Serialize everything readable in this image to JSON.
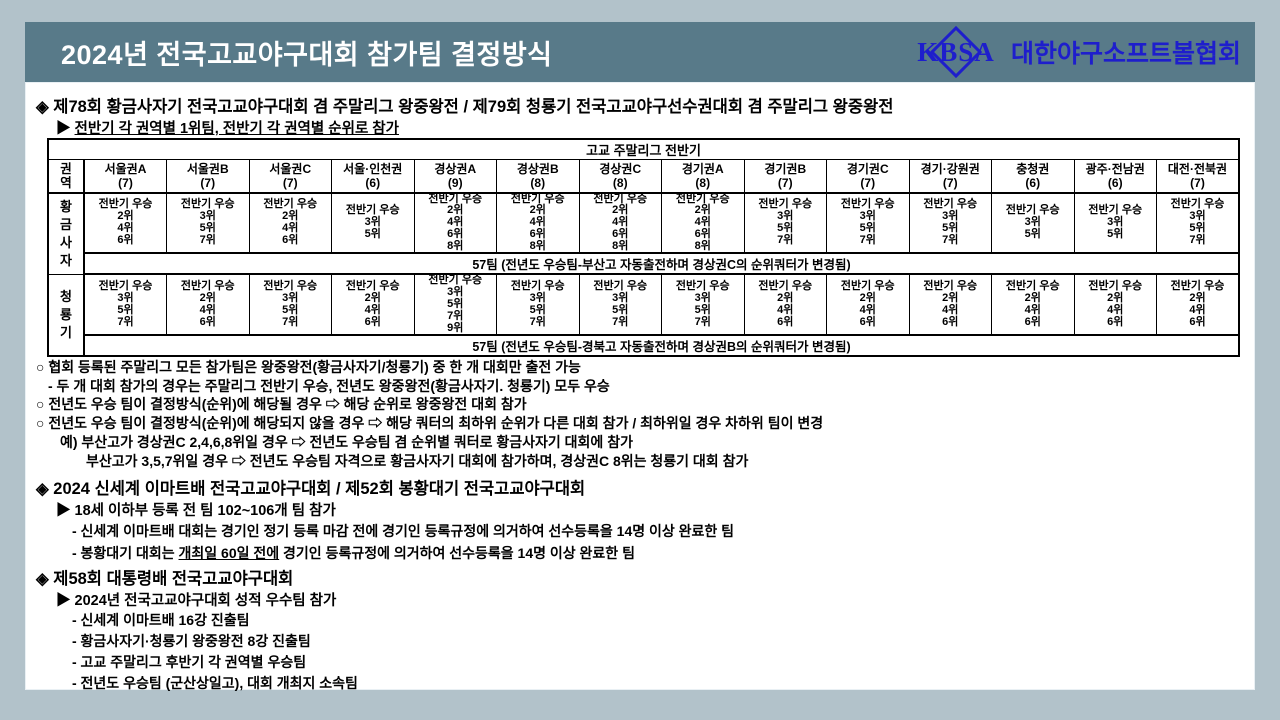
{
  "colors": {
    "page_bg": "#b2c2ca",
    "title_bar_bg": "#587a89",
    "title_text": "#ffffff",
    "logo_blue": "#1e1ecc",
    "body_text": "#000000",
    "panel_bg": "#ffffff"
  },
  "header": {
    "title": "2024년 전국고교야구대회 참가팀 결정방식",
    "logo_acronym": "KBSA",
    "logo_org": "대한야구소프트볼협회"
  },
  "section1": {
    "heading": "◈ 제78회 황금사자기 전국고교야구대회 겸 주말리그 왕중왕전 / 제79회 청룡기 전국고교야구선수권대회 겸 주말리그 왕중왕전",
    "sub_bullet": "▶",
    "subheading": "전반기 각 권역별 1위팀, 전반기 각 권역별 순위로 참가"
  },
  "table": {
    "title": "고교 주말리그 전반기",
    "corner_label": "권역",
    "columns": [
      {
        "name": "서울권A",
        "count": "(7)"
      },
      {
        "name": "서울권B",
        "count": "(7)"
      },
      {
        "name": "서울권C",
        "count": "(7)"
      },
      {
        "name": "서울·인천권",
        "count": "(6)"
      },
      {
        "name": "경상권A",
        "count": "(9)"
      },
      {
        "name": "경상권B",
        "count": "(8)"
      },
      {
        "name": "경상권C",
        "count": "(8)"
      },
      {
        "name": "경기권A",
        "count": "(8)"
      },
      {
        "name": "경기권B",
        "count": "(7)"
      },
      {
        "name": "경기권C",
        "count": "(7)"
      },
      {
        "name": "경기·강원권",
        "count": "(7)"
      },
      {
        "name": "충청권",
        "count": "(6)"
      },
      {
        "name": "광주·전남권",
        "count": "(6)"
      },
      {
        "name": "대전·전북권",
        "count": "(7)"
      }
    ],
    "rows": [
      {
        "label": "황금사자",
        "cells": [
          [
            "전반기 우승",
            "2위",
            "4위",
            "6위"
          ],
          [
            "전반기 우승",
            "3위",
            "5위",
            "7위"
          ],
          [
            "전반기 우승",
            "2위",
            "4위",
            "6위"
          ],
          [
            "전반기 우승",
            "3위",
            "5위"
          ],
          [
            "전반기 우승",
            "2위",
            "4위",
            "6위",
            "8위"
          ],
          [
            "전반기 우승",
            "2위",
            "4위",
            "6위",
            "8위"
          ],
          [
            "전반기 우승",
            "2위",
            "4위",
            "6위",
            "8위"
          ],
          [
            "전반기 우승",
            "2위",
            "4위",
            "6위",
            "8위"
          ],
          [
            "전반기 우승",
            "3위",
            "5위",
            "7위"
          ],
          [
            "전반기 우승",
            "3위",
            "5위",
            "7위"
          ],
          [
            "전반기 우승",
            "3위",
            "5위",
            "7위"
          ],
          [
            "전반기 우승",
            "3위",
            "5위"
          ],
          [
            "전반기 우승",
            "3위",
            "5위"
          ],
          [
            "전반기 우승",
            "3위",
            "5위",
            "7위"
          ]
        ],
        "footer": "57팀 (전년도 우승팀-부산고 자동출전하며 경상권C의 순위쿼터가 변경됨)"
      },
      {
        "label": "청룡기",
        "cells": [
          [
            "전반기 우승",
            "3위",
            "5위",
            "7위"
          ],
          [
            "전반기 우승",
            "2위",
            "4위",
            "6위"
          ],
          [
            "전반기 우승",
            "3위",
            "5위",
            "7위"
          ],
          [
            "전반기 우승",
            "2위",
            "4위",
            "6위"
          ],
          [
            "전반기 우승",
            "3위",
            "5위",
            "7위",
            "9위"
          ],
          [
            "전반기 우승",
            "3위",
            "5위",
            "7위"
          ],
          [
            "전반기 우승",
            "3위",
            "5위",
            "7위"
          ],
          [
            "전반기 우승",
            "3위",
            "5위",
            "7위"
          ],
          [
            "전반기 우승",
            "2위",
            "4위",
            "6위"
          ],
          [
            "전반기 우승",
            "2위",
            "4위",
            "6위"
          ],
          [
            "전반기 우승",
            "2위",
            "4위",
            "6위"
          ],
          [
            "전반기 우승",
            "2위",
            "4위",
            "6위"
          ],
          [
            "전반기 우승",
            "2위",
            "4위",
            "6위"
          ],
          [
            "전반기 우승",
            "2위",
            "4위",
            "6위"
          ]
        ],
        "footer": "57팀 (전년도 우승팀-경북고 자동출전하며 경상권B의 순위쿼터가 변경됨)"
      }
    ]
  },
  "rules": {
    "line1": "○ 협회 등록된 주말리그 모든 참가팀은 왕중왕전(황금사자기/청룡기) 중 한 개 대회만 출전 가능",
    "line2": "- 두 개 대회 참가의 경우는 주말리그 전반기 우승, 전년도 왕중왕전(황금사자기. 청룡기) 모두 우승",
    "line3": "○ 전년도 우승 팀이 결정방식(순위)에 해당될 경우 ⇨ 해당 순위로 왕중왕전 대회 참가",
    "line4": "○ 전년도 우승 팀이 결정방식(순위)에 해당되지 않을 경우 ⇨ 해당 쿼터의 최하위 순위가 다른 대회 참가 / 최하위일 경우 차하위 팀이 변경",
    "line5": "예) 부산고가 경상권C 2,4,6,8위일 경우 ⇨ 전년도 우승팀 겸 순위별 쿼터로 황금사자기 대회에 참가",
    "line6": "부산고가 3,5,7위일 경우 ⇨ 전년도 우승팀 자격으로 황금사자기 대회에 참가하며, 경상권C 8위는 청룡기 대회 참가"
  },
  "section2": {
    "heading": "◈ 2024 신세계 이마트배 전국고교야구대회 / 제52회 봉황대기 전국고교야구대회",
    "line1": "▶ 18세 이하부 등록 전 팀 102~106개 팀 참가",
    "line2": "- 신세계 이마트배 대회는 경기인 정기 등록 마감 전에 경기인 등록규정에 의거하여 선수등록을 14명 이상 완료한 팀",
    "line3_pre": "- 봉황대기 대회는 ",
    "line3_em": "개최일 60일 전에",
    "line3_post": " 경기인 등록규정에 의거하여 선수등록을 14명 이상 완료한 팀"
  },
  "section3": {
    "heading": "◈ 제58회 대통령배 전국고교야구대회",
    "line1": "▶ 2024년 전국고교야구대회 성적 우수팀 참가",
    "line2": "- 신세계 이마트배 16강 진출팀",
    "line3": "- 황금사자기·청룡기 왕중왕전 8강 진출팀",
    "line4": "- 고교 주말리그 후반기 각 권역별 우승팀",
    "line5": "- 전년도 우승팀 (군산상일고), 대회 개최지 소속팀"
  }
}
